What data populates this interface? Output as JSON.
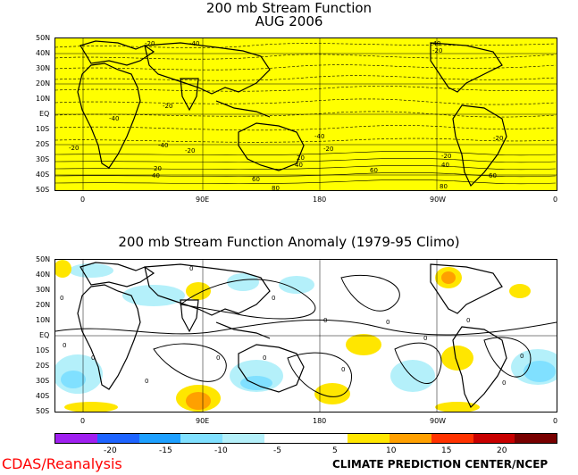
{
  "top_panel": {
    "title_line1": "200 mb Stream Function",
    "title_line2": "AUG 2006",
    "fill_color": "#ffff00",
    "contour_labels": [
      "-20",
      "-40",
      "-40",
      "-20",
      "-40",
      "-20",
      "-40",
      "-20",
      "-40",
      "-20",
      "-20",
      "-40",
      "-20",
      "20",
      "40",
      "20",
      "40",
      "60",
      "80",
      "40",
      "-20",
      "-20",
      "-40",
      "-20",
      "20",
      "40",
      "60",
      "80",
      "60",
      "80",
      "40"
    ]
  },
  "bottom_panel": {
    "title": "200 mb Stream Function Anomaly (1979-95 Climo)",
    "contour_labels": [
      "0",
      "0",
      "0",
      "0",
      "0",
      "0",
      "0",
      "0",
      "0",
      "0",
      "0",
      "0",
      "0",
      "0",
      "0"
    ]
  },
  "latitude_labels": [
    "50N",
    "40N",
    "30N",
    "20N",
    "10N",
    "EQ",
    "10S",
    "20S",
    "30S",
    "40S",
    "50S"
  ],
  "longitude_labels": [
    "0",
    "90E",
    "180",
    "90W",
    "0"
  ],
  "colorbar": {
    "colors": [
      "#a020f0",
      "#1e64ff",
      "#1ea0ff",
      "#80e0ff",
      "#b4f0fa",
      "#ffffff",
      "#ffffff",
      "#ffe600",
      "#ffa000",
      "#ff3200",
      "#c80000",
      "#780000"
    ],
    "tick_labels": [
      "-20",
      "-15",
      "-10",
      "-5",
      "5",
      "10",
      "15",
      "20"
    ]
  },
  "credits": {
    "left": "CDAS/Reanalysis",
    "right": "CLIMATE PREDICTION CENTER/NCEP"
  },
  "colors": {
    "land_outline": "#000000",
    "positive_anomaly": "#ffe600",
    "strong_positive": "#ffa000",
    "negative_anomaly": "#b4f0fa",
    "strong_negative": "#80e0ff",
    "credit_red": "#ff0000"
  }
}
